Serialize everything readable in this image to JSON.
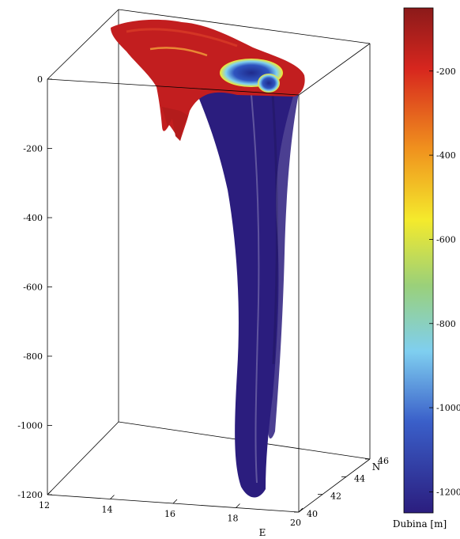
{
  "chart_data": {
    "type": "surface3d",
    "title": "",
    "z_axis": {
      "label": "",
      "ticks": [
        "0",
        "-200",
        "-400",
        "-600",
        "-800",
        "-1000",
        "-1200"
      ],
      "range": [
        -1200,
        0
      ]
    },
    "e_axis": {
      "label": "E",
      "ticks": [
        "12",
        "14",
        "16",
        "18",
        "20"
      ],
      "range": [
        12,
        20
      ]
    },
    "n_axis": {
      "label": "N",
      "ticks": [
        "40",
        "42",
        "44",
        "46"
      ],
      "range": [
        40,
        46
      ]
    },
    "colorbar": {
      "label": "Dubina [m]",
      "ticks": [
        "-200",
        "-400",
        "-600",
        "-800",
        "-1000",
        "-1200"
      ],
      "range": [
        -1250,
        -50
      ],
      "colormap": "jet"
    },
    "colors": {
      "deep": "#2b1d7e",
      "blue": "#3a5fc9",
      "cyan": "#7fcff0",
      "green": "#9ad07a",
      "yellow": "#f4ea2c",
      "orange": "#f0921e",
      "red": "#c9201f",
      "darkred": "#8b1a1a"
    }
  }
}
